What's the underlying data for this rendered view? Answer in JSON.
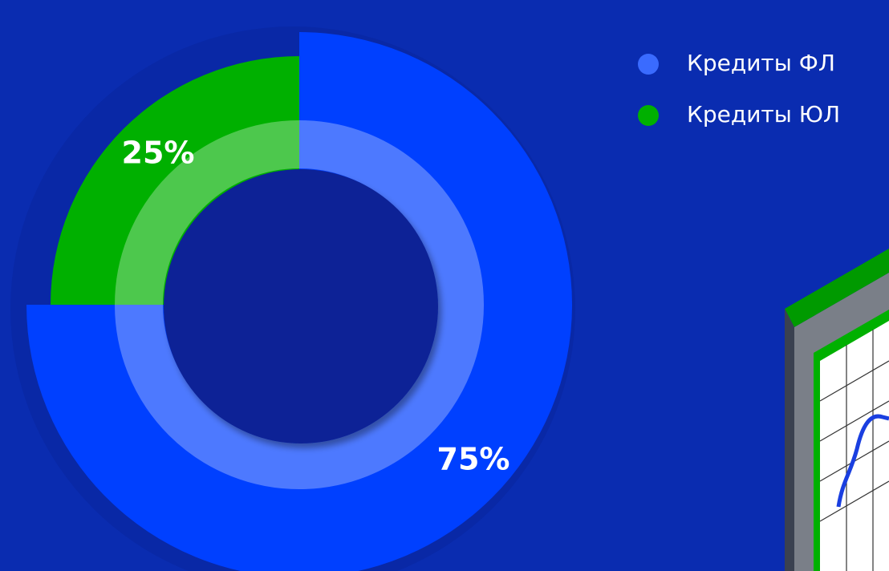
{
  "chart_data": {
    "type": "pie",
    "categories": [
      "Кредиты ФЛ",
      "Кредиты ЮЛ"
    ],
    "values": [
      75,
      25
    ],
    "value_labels": [
      "75%",
      "25%"
    ],
    "colors": [
      "#0040ff",
      "#00b000"
    ],
    "legend_colors": [
      "#3a6bff",
      "#00b000"
    ]
  }
}
